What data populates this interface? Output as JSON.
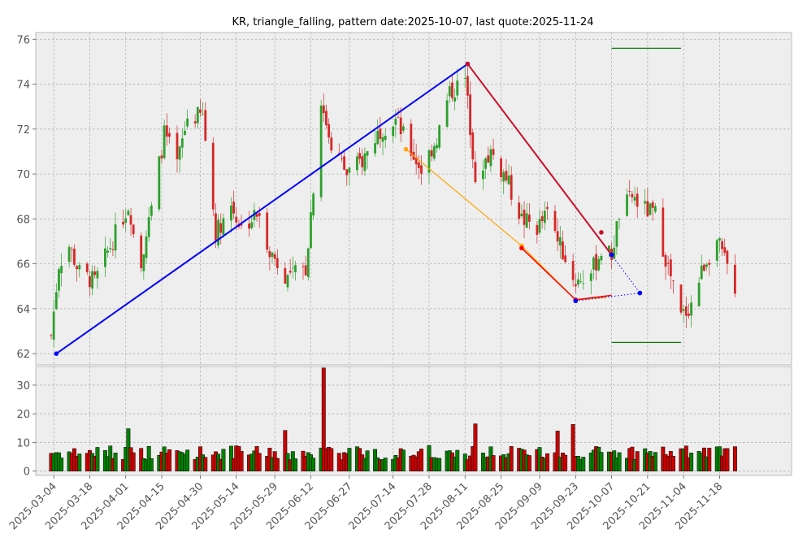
{
  "chart_data": {
    "type": "candlestick",
    "title": "KR, triangle_falling, pattern date:2025-10-07, last quote:2025-11-24",
    "price_ylim": [
      61.5,
      76.3
    ],
    "price_yticks": [
      62,
      64,
      66,
      68,
      70,
      72,
      74,
      76
    ],
    "volume_ylim": [
      -1.5,
      36.5
    ],
    "volume_yticks": [
      0,
      10,
      20,
      30
    ],
    "xlim": [
      "2025-02-25",
      "2025-12-16"
    ],
    "x_tick_labels": [
      "2025-03-04",
      "2025-03-18",
      "2025-04-01",
      "2025-04-15",
      "2025-04-30",
      "2025-05-14",
      "2025-05-29",
      "2025-06-12",
      "2025-06-27",
      "2025-07-14",
      "2025-07-28",
      "2025-08-11",
      "2025-08-25",
      "2025-09-09",
      "2025-09-23",
      "2025-10-07",
      "2025-10-21",
      "2025-11-04",
      "2025-11-18"
    ],
    "grid": true,
    "colors": {
      "up": "#2ca02c",
      "down": "#d62728",
      "blue": "#0000ff",
      "orange": "#ffa500",
      "crimson": "#c8102e",
      "green_line": "#008000",
      "background": "#eeeeee"
    },
    "price_anchors": [
      [
        "2025-03-03",
        62.8
      ],
      [
        "2025-03-06",
        66.0
      ],
      [
        "2025-03-10",
        66.8
      ],
      [
        "2025-03-14",
        65.6
      ],
      [
        "2025-03-20",
        65.2
      ],
      [
        "2025-03-26",
        66.8
      ],
      [
        "2025-04-02",
        68.6
      ],
      [
        "2025-04-07",
        66.2
      ],
      [
        "2025-04-11",
        68.4
      ],
      [
        "2025-04-16",
        71.8
      ],
      [
        "2025-04-21",
        70.4
      ],
      [
        "2025-04-25",
        72.5
      ],
      [
        "2025-05-01",
        72.6
      ],
      [
        "2025-05-06",
        67.4
      ],
      [
        "2025-05-12",
        68.6
      ],
      [
        "2025-05-16",
        67.6
      ],
      [
        "2025-05-22",
        68.2
      ],
      [
        "2025-05-28",
        66.4
      ],
      [
        "2025-06-03",
        65.4
      ],
      [
        "2025-06-10",
        65.8
      ],
      [
        "2025-06-16",
        73.2
      ],
      [
        "2025-06-20",
        71.4
      ],
      [
        "2025-06-26",
        70.0
      ],
      [
        "2025-07-02",
        70.6
      ],
      [
        "2025-07-09",
        72.0
      ],
      [
        "2025-07-15",
        72.4
      ],
      [
        "2025-07-21",
        71.0
      ],
      [
        "2025-07-25",
        70.2
      ],
      [
        "2025-07-31",
        71.6
      ],
      [
        "2025-08-05",
        73.6
      ],
      [
        "2025-08-11",
        74.2
      ],
      [
        "2025-08-15",
        70.0
      ],
      [
        "2025-08-21",
        71.0
      ],
      [
        "2025-08-27",
        69.8
      ],
      [
        "2025-09-02",
        68.0
      ],
      [
        "2025-09-08",
        67.6
      ],
      [
        "2025-09-12",
        68.2
      ],
      [
        "2025-09-17",
        66.8
      ],
      [
        "2025-09-23",
        65.2
      ],
      [
        "2025-09-29",
        65.6
      ],
      [
        "2025-10-03",
        66.6
      ],
      [
        "2025-10-07",
        66.4
      ],
      [
        "2025-10-10",
        68.2
      ],
      [
        "2025-10-15",
        69.0
      ],
      [
        "2025-10-20",
        68.4
      ],
      [
        "2025-10-24",
        68.2
      ],
      [
        "2025-10-29",
        65.8
      ],
      [
        "2025-11-03",
        63.6
      ],
      [
        "2025-11-07",
        64.2
      ],
      [
        "2025-11-12",
        66.0
      ],
      [
        "2025-11-17",
        67.0
      ],
      [
        "2025-11-24",
        65.0
      ]
    ],
    "volume_spikes": [
      [
        "2025-06-17",
        36.0
      ],
      [
        "2025-08-15",
        16.5
      ],
      [
        "2025-09-22",
        16.3
      ],
      [
        "2025-09-16",
        14.0
      ],
      [
        "2025-04-02",
        14.8
      ],
      [
        "2025-06-02",
        14.2
      ]
    ],
    "lines": [
      {
        "name": "",
        "color": "#0000ff",
        "style": "solid",
        "width": 2,
        "markers": true,
        "points": [
          [
            "2025-03-05",
            62.0
          ],
          [
            "2025-08-12",
            74.9
          ]
        ]
      },
      {
        "name": "",
        "color": "#c8102e",
        "style": "solid",
        "width": 2,
        "markers": true,
        "points": [
          [
            "2025-08-12",
            74.9
          ],
          [
            "2025-10-07",
            66.4
          ]
        ]
      },
      {
        "name": "",
        "color": "#ffa500",
        "style": "solid",
        "width": 1.2,
        "markers": true,
        "points": [
          [
            "2025-07-19",
            71.1
          ],
          [
            "2025-09-02",
            66.8
          ]
        ]
      },
      {
        "name": "",
        "color": "#ffa500",
        "style": "solid",
        "width": 1.2,
        "markers": false,
        "points": [
          [
            "2025-09-02",
            66.8
          ],
          [
            "2025-09-23",
            64.4
          ],
          [
            "2025-10-05",
            64.5
          ]
        ]
      },
      {
        "name": "",
        "color": "#ff0000",
        "style": "solid",
        "width": 1.5,
        "markers": true,
        "points": [
          [
            "2025-09-02",
            66.7
          ],
          [
            "2025-09-23",
            64.4
          ]
        ]
      },
      {
        "name": "",
        "color": "#ff0000",
        "style": "solid",
        "width": 1.5,
        "markers": false,
        "points": [
          [
            "2025-09-23",
            64.4
          ],
          [
            "2025-10-07",
            64.6
          ]
        ]
      },
      {
        "name": "",
        "color": "#c8102e",
        "style": "solid",
        "width": 1,
        "markers": true,
        "points": [
          [
            "2025-10-03",
            67.4
          ]
        ]
      },
      {
        "name": "",
        "color": "#0000ff",
        "style": "dotted",
        "width": 1,
        "markers": true,
        "points": [
          [
            "2025-10-07",
            66.4
          ],
          [
            "2025-10-18",
            64.7
          ]
        ]
      },
      {
        "name": "",
        "color": "#0000ff",
        "style": "dotted",
        "width": 1,
        "markers": true,
        "points": [
          [
            "2025-09-23",
            64.35
          ],
          [
            "2025-10-18",
            64.7
          ]
        ]
      },
      {
        "name": "",
        "color": "#008000",
        "style": "solid",
        "width": 1.2,
        "markers": false,
        "points": [
          [
            "2025-10-07",
            75.6
          ],
          [
            "2025-11-03",
            75.6
          ]
        ]
      },
      {
        "name": "",
        "color": "#008000",
        "style": "solid",
        "width": 1.2,
        "markers": false,
        "points": [
          [
            "2025-10-07",
            62.5
          ],
          [
            "2025-11-03",
            62.5
          ]
        ]
      }
    ]
  }
}
